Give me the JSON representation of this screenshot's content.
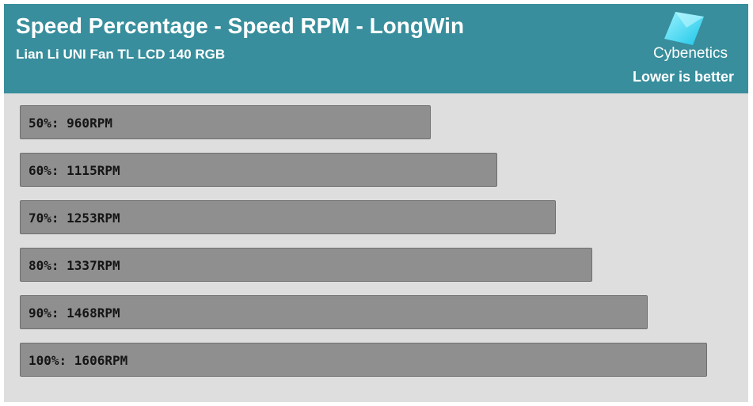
{
  "header": {
    "title": "Speed Percentage - Speed RPM - LongWin",
    "subtitle": "Lian Li UNI Fan TL LCD 140 RGB",
    "brand": "Cybenetics",
    "note": "Lower is better",
    "background_color": "#388e9c",
    "logo_icon": "cybenetics-diamond-icon"
  },
  "chart_data": {
    "type": "bar",
    "orientation": "horizontal",
    "categories": [
      "50%",
      "60%",
      "70%",
      "80%",
      "90%",
      "100%"
    ],
    "values": [
      960,
      1115,
      1253,
      1337,
      1468,
      1606
    ],
    "labels": [
      "50%: 960RPM",
      "60%: 1115RPM",
      "70%: 1253RPM",
      "80%: 1337RPM",
      "90%: 1468RPM",
      "100%: 1606RPM"
    ],
    "unit": "RPM",
    "bar_color": "#8f8f8f",
    "plot_background": "#dedede",
    "grid": false,
    "legend": "none"
  }
}
